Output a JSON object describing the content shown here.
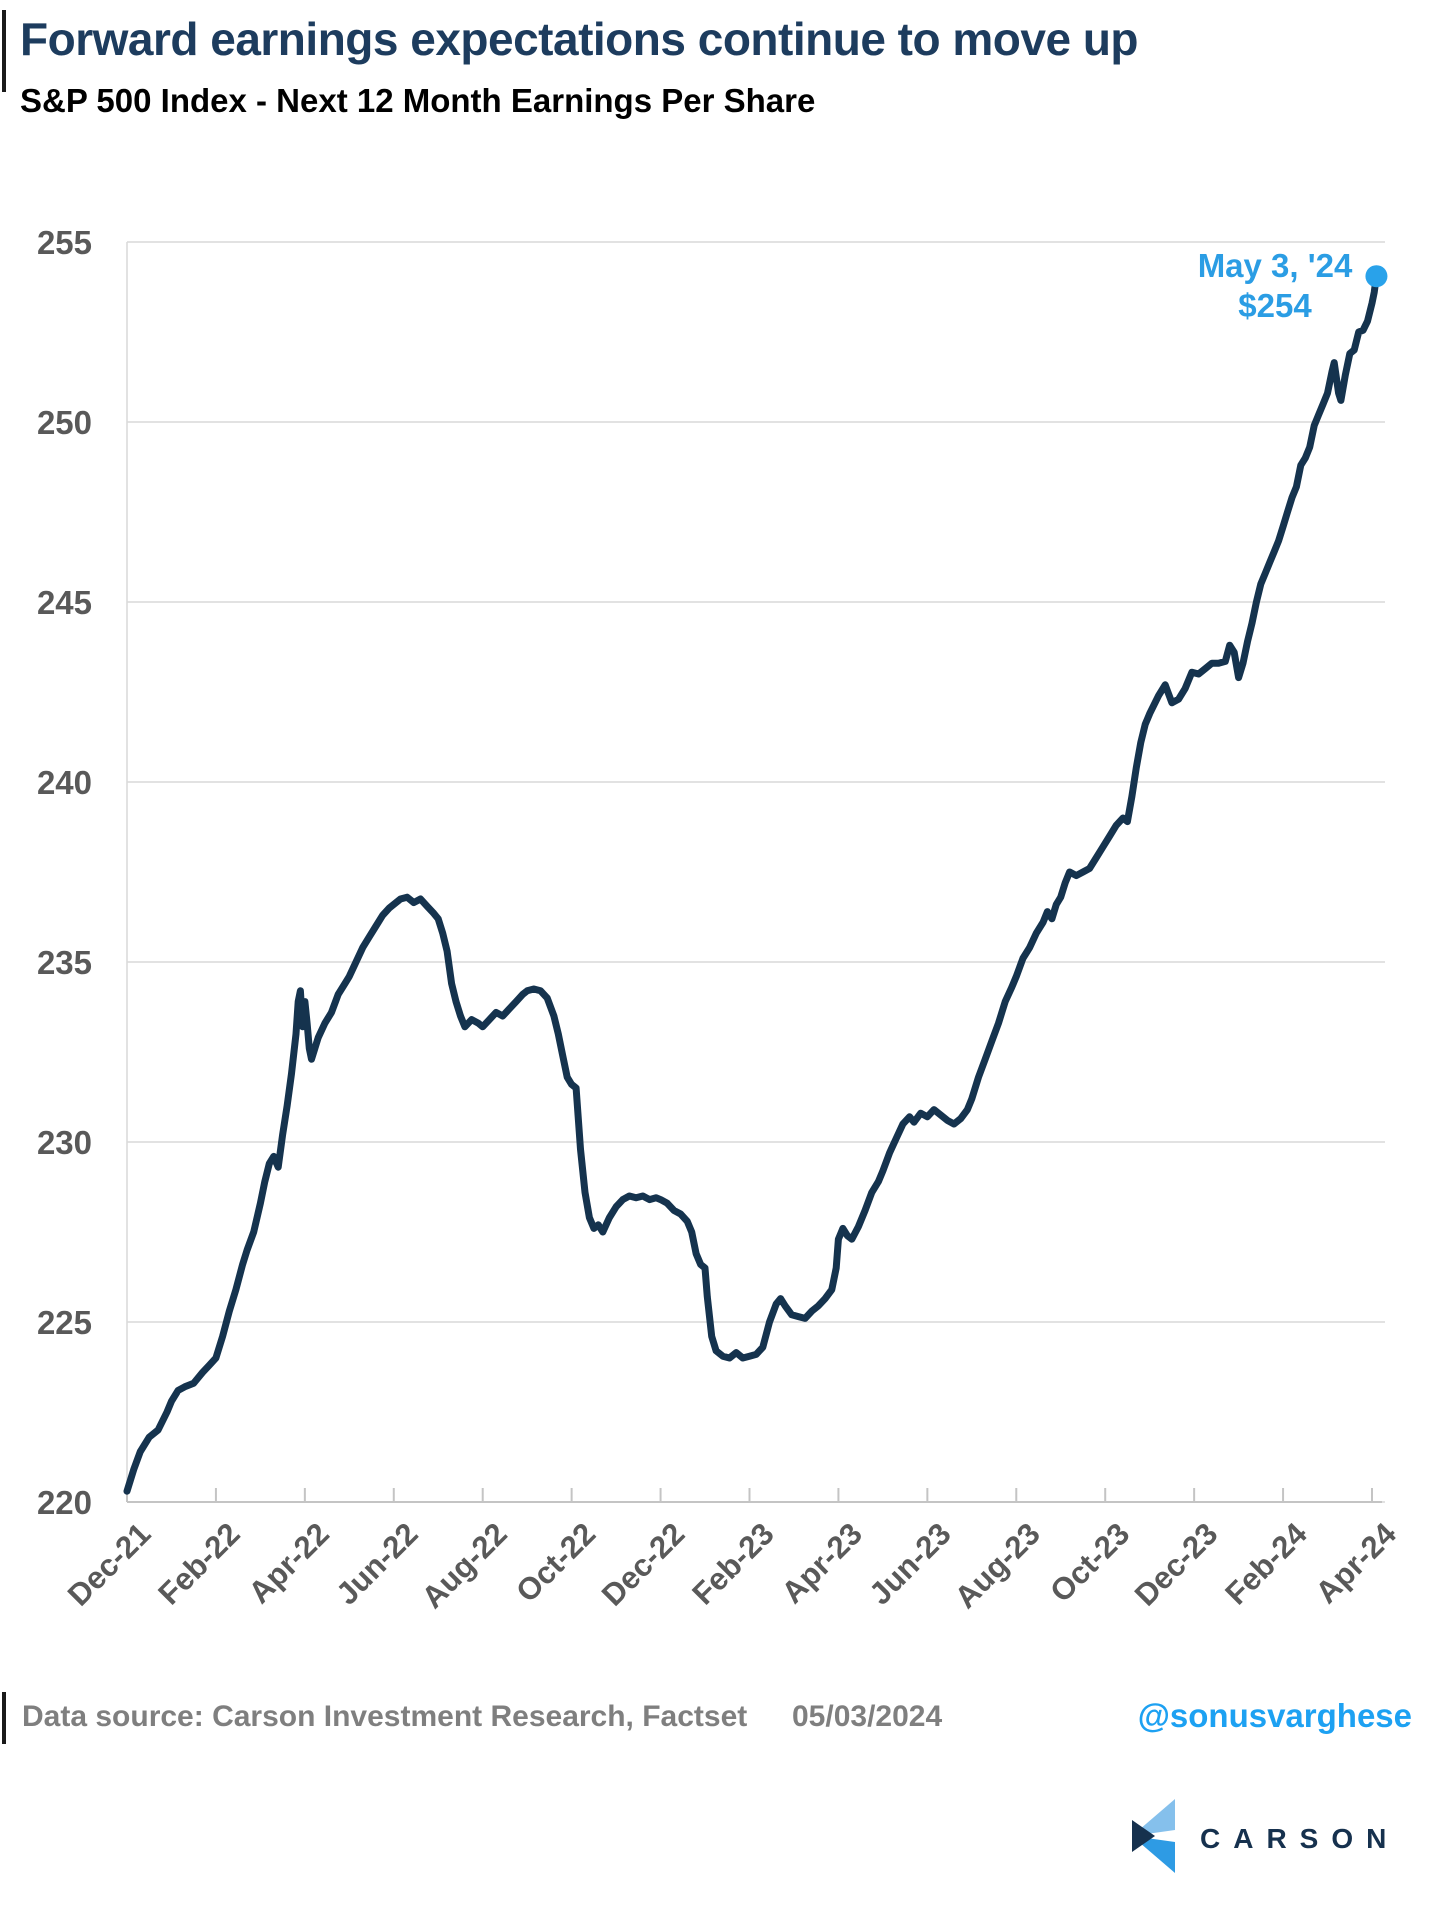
{
  "header": {
    "title": "Forward earnings expectations continue to move up",
    "subtitle": "S&P 500 Index - Next 12 Month Earnings Per Share"
  },
  "chart_data": {
    "type": "line",
    "title": "S&P 500 Index - Next 12 Month Earnings Per Share",
    "xlabel": "",
    "ylabel": "",
    "ylim": [
      220,
      255
    ],
    "grid": "horizontal",
    "y_ticks": [
      255,
      250,
      245,
      240,
      235,
      230,
      225,
      220
    ],
    "x_tick_labels": [
      "Dec-21",
      "Feb-22",
      "Apr-22",
      "Jun-22",
      "Aug-22",
      "Oct-22",
      "Dec-22",
      "Feb-23",
      "Apr-23",
      "Jun-23",
      "Aug-23",
      "Oct-23",
      "Dec-23",
      "Feb-24",
      "Apr-24"
    ],
    "x_unit": "months since Dec-2021, ticks every 2 months",
    "annotation": {
      "line1": "May 3, '24",
      "line2": "$254"
    },
    "end_dot": {
      "x_month": 28.1,
      "value": 254.05
    },
    "series": [
      {
        "name": "S&P 500 NTM EPS",
        "points": [
          [
            0,
            220.3
          ],
          [
            0.15,
            220.9
          ],
          [
            0.3,
            221.4
          ],
          [
            0.5,
            221.8
          ],
          [
            0.7,
            222.0
          ],
          [
            0.9,
            222.5
          ],
          [
            1.0,
            222.8
          ],
          [
            1.15,
            223.1
          ],
          [
            1.3,
            223.2
          ],
          [
            1.5,
            223.3
          ],
          [
            1.7,
            223.6
          ],
          [
            1.85,
            223.8
          ],
          [
            2.0,
            224.0
          ],
          [
            2.15,
            224.6
          ],
          [
            2.3,
            225.3
          ],
          [
            2.45,
            225.9
          ],
          [
            2.6,
            226.6
          ],
          [
            2.7,
            227.0
          ],
          [
            2.85,
            227.5
          ],
          [
            3.0,
            228.3
          ],
          [
            3.1,
            228.9
          ],
          [
            3.2,
            229.4
          ],
          [
            3.3,
            229.6
          ],
          [
            3.4,
            229.3
          ],
          [
            3.5,
            230.2
          ],
          [
            3.6,
            231.0
          ],
          [
            3.7,
            231.9
          ],
          [
            3.8,
            233.0
          ],
          [
            3.85,
            233.9
          ],
          [
            3.9,
            234.2
          ],
          [
            3.95,
            233.2
          ],
          [
            4.0,
            233.9
          ],
          [
            4.05,
            233.3
          ],
          [
            4.1,
            232.6
          ],
          [
            4.15,
            232.3
          ],
          [
            4.3,
            232.9
          ],
          [
            4.45,
            233.3
          ],
          [
            4.6,
            233.6
          ],
          [
            4.75,
            234.1
          ],
          [
            4.9,
            234.4
          ],
          [
            5.0,
            234.6
          ],
          [
            5.15,
            235.0
          ],
          [
            5.3,
            235.4
          ],
          [
            5.45,
            235.7
          ],
          [
            5.6,
            236.0
          ],
          [
            5.75,
            236.3
          ],
          [
            5.9,
            236.5
          ],
          [
            6.0,
            236.6
          ],
          [
            6.15,
            236.75
          ],
          [
            6.3,
            236.8
          ],
          [
            6.45,
            236.65
          ],
          [
            6.6,
            236.75
          ],
          [
            6.75,
            236.55
          ],
          [
            6.9,
            236.35
          ],
          [
            7.0,
            236.2
          ],
          [
            7.1,
            235.8
          ],
          [
            7.2,
            235.3
          ],
          [
            7.3,
            234.4
          ],
          [
            7.4,
            233.9
          ],
          [
            7.5,
            233.5
          ],
          [
            7.6,
            233.2
          ],
          [
            7.75,
            233.4
          ],
          [
            7.9,
            233.3
          ],
          [
            8.0,
            233.2
          ],
          [
            8.15,
            233.4
          ],
          [
            8.3,
            233.6
          ],
          [
            8.45,
            233.5
          ],
          [
            8.6,
            233.7
          ],
          [
            8.75,
            233.9
          ],
          [
            8.9,
            234.1
          ],
          [
            9.0,
            234.2
          ],
          [
            9.15,
            234.25
          ],
          [
            9.3,
            234.2
          ],
          [
            9.45,
            234.0
          ],
          [
            9.6,
            233.5
          ],
          [
            9.7,
            233.0
          ],
          [
            9.8,
            232.4
          ],
          [
            9.9,
            231.8
          ],
          [
            10.0,
            231.6
          ],
          [
            10.1,
            231.5
          ],
          [
            10.2,
            229.8
          ],
          [
            10.3,
            228.6
          ],
          [
            10.4,
            227.9
          ],
          [
            10.5,
            227.6
          ],
          [
            10.6,
            227.7
          ],
          [
            10.7,
            227.5
          ],
          [
            10.85,
            227.9
          ],
          [
            11.0,
            228.2
          ],
          [
            11.15,
            228.4
          ],
          [
            11.3,
            228.5
          ],
          [
            11.45,
            228.45
          ],
          [
            11.6,
            228.5
          ],
          [
            11.75,
            228.4
          ],
          [
            11.9,
            228.45
          ],
          [
            12.0,
            228.4
          ],
          [
            12.15,
            228.3
          ],
          [
            12.3,
            228.1
          ],
          [
            12.45,
            228.0
          ],
          [
            12.6,
            227.8
          ],
          [
            12.7,
            227.5
          ],
          [
            12.8,
            226.9
          ],
          [
            12.9,
            226.6
          ],
          [
            13.0,
            226.5
          ],
          [
            13.05,
            225.7
          ],
          [
            13.15,
            224.6
          ],
          [
            13.25,
            224.2
          ],
          [
            13.4,
            224.05
          ],
          [
            13.55,
            224.0
          ],
          [
            13.7,
            224.15
          ],
          [
            13.85,
            224.0
          ],
          [
            14.0,
            224.05
          ],
          [
            14.15,
            224.1
          ],
          [
            14.3,
            224.3
          ],
          [
            14.45,
            225.0
          ],
          [
            14.6,
            225.5
          ],
          [
            14.7,
            225.65
          ],
          [
            14.8,
            225.45
          ],
          [
            14.95,
            225.2
          ],
          [
            15.1,
            225.15
          ],
          [
            15.25,
            225.1
          ],
          [
            15.4,
            225.3
          ],
          [
            15.55,
            225.45
          ],
          [
            15.7,
            225.65
          ],
          [
            15.85,
            225.9
          ],
          [
            15.95,
            226.5
          ],
          [
            16.0,
            227.3
          ],
          [
            16.1,
            227.6
          ],
          [
            16.2,
            227.4
          ],
          [
            16.3,
            227.3
          ],
          [
            16.45,
            227.65
          ],
          [
            16.6,
            228.1
          ],
          [
            16.75,
            228.6
          ],
          [
            16.9,
            228.9
          ],
          [
            17.0,
            229.2
          ],
          [
            17.15,
            229.7
          ],
          [
            17.3,
            230.1
          ],
          [
            17.45,
            230.5
          ],
          [
            17.6,
            230.7
          ],
          [
            17.7,
            230.55
          ],
          [
            17.85,
            230.8
          ],
          [
            18.0,
            230.7
          ],
          [
            18.15,
            230.9
          ],
          [
            18.3,
            230.75
          ],
          [
            18.45,
            230.6
          ],
          [
            18.6,
            230.5
          ],
          [
            18.75,
            230.65
          ],
          [
            18.9,
            230.9
          ],
          [
            19.0,
            231.2
          ],
          [
            19.15,
            231.8
          ],
          [
            19.3,
            232.3
          ],
          [
            19.45,
            232.8
          ],
          [
            19.6,
            233.3
          ],
          [
            19.75,
            233.9
          ],
          [
            19.9,
            234.3
          ],
          [
            20.0,
            234.6
          ],
          [
            20.15,
            235.1
          ],
          [
            20.3,
            235.4
          ],
          [
            20.45,
            235.8
          ],
          [
            20.6,
            236.1
          ],
          [
            20.7,
            236.4
          ],
          [
            20.8,
            236.2
          ],
          [
            20.9,
            236.6
          ],
          [
            21.0,
            236.8
          ],
          [
            21.1,
            237.2
          ],
          [
            21.2,
            237.5
          ],
          [
            21.35,
            237.4
          ],
          [
            21.5,
            237.5
          ],
          [
            21.65,
            237.6
          ],
          [
            21.8,
            237.9
          ],
          [
            21.95,
            238.2
          ],
          [
            22.1,
            238.5
          ],
          [
            22.25,
            238.8
          ],
          [
            22.4,
            239.0
          ],
          [
            22.5,
            238.9
          ],
          [
            22.6,
            239.6
          ],
          [
            22.7,
            240.4
          ],
          [
            22.8,
            241.1
          ],
          [
            22.9,
            241.6
          ],
          [
            23.0,
            241.9
          ],
          [
            23.2,
            242.4
          ],
          [
            23.35,
            242.7
          ],
          [
            23.5,
            242.2
          ],
          [
            23.65,
            242.3
          ],
          [
            23.8,
            242.6
          ],
          [
            23.95,
            243.05
          ],
          [
            24.1,
            243.0
          ],
          [
            24.25,
            243.15
          ],
          [
            24.4,
            243.3
          ],
          [
            24.55,
            243.3
          ],
          [
            24.7,
            243.35
          ],
          [
            24.8,
            243.8
          ],
          [
            24.9,
            243.6
          ],
          [
            25.0,
            242.9
          ],
          [
            25.1,
            243.3
          ],
          [
            25.2,
            243.9
          ],
          [
            25.3,
            244.4
          ],
          [
            25.4,
            245.0
          ],
          [
            25.5,
            245.5
          ],
          [
            25.6,
            245.8
          ],
          [
            25.7,
            246.1
          ],
          [
            25.8,
            246.4
          ],
          [
            25.9,
            246.7
          ],
          [
            26.0,
            247.1
          ],
          [
            26.1,
            247.5
          ],
          [
            26.2,
            247.9
          ],
          [
            26.3,
            248.2
          ],
          [
            26.4,
            248.8
          ],
          [
            26.5,
            249.0
          ],
          [
            26.6,
            249.3
          ],
          [
            26.7,
            249.9
          ],
          [
            26.8,
            250.2
          ],
          [
            26.9,
            250.5
          ],
          [
            27.0,
            250.8
          ],
          [
            27.1,
            251.4
          ],
          [
            27.15,
            251.65
          ],
          [
            27.25,
            250.8
          ],
          [
            27.3,
            250.6
          ],
          [
            27.4,
            251.3
          ],
          [
            27.5,
            251.9
          ],
          [
            27.6,
            252.0
          ],
          [
            27.7,
            252.5
          ],
          [
            27.8,
            252.55
          ],
          [
            27.9,
            252.8
          ],
          [
            28.0,
            253.3
          ],
          [
            28.05,
            253.6
          ],
          [
            28.1,
            254.05
          ]
        ]
      }
    ]
  },
  "footer": {
    "source": "Data source: Carson Investment Research, Factset",
    "date": "05/03/2024",
    "handle": "@sonusvarghese"
  },
  "logo": {
    "text": "CARSON"
  },
  "colors": {
    "line": "#15334e",
    "accent_blue": "#2b9de4",
    "dot_blue": "#29a2ea",
    "title_navy": "#1d3c5e",
    "axis_gray": "#595959",
    "gridline": "#d9d9d9",
    "axis_line": "#c4c4c4",
    "footer_gray": "#7f7f7f",
    "logo_navy": "#16314e",
    "logo_light_blue": "#85c0ec",
    "logo_mid_blue": "#2e9be4"
  }
}
